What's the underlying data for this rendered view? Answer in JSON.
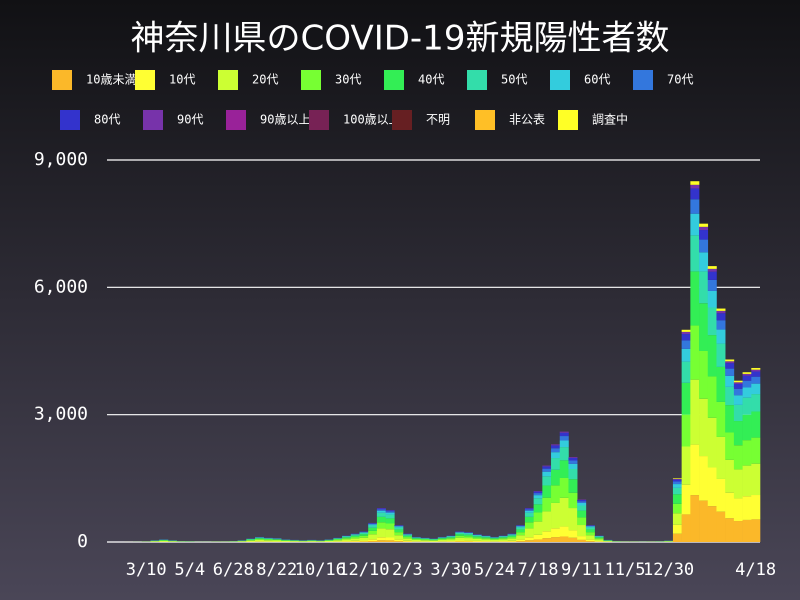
{
  "chart_data": {
    "type": "bar",
    "stacked": true,
    "title": "神奈川県のCOVID-19新規陽性者数",
    "categories": [
      null,
      null,
      null,
      null,
      "3/10",
      null,
      null,
      null,
      null,
      "5/4",
      null,
      null,
      null,
      null,
      "6/28",
      null,
      null,
      null,
      null,
      "8/22",
      null,
      null,
      null,
      null,
      "10/16",
      null,
      null,
      null,
      null,
      "12/10",
      null,
      null,
      null,
      null,
      "2/3",
      null,
      null,
      null,
      null,
      "3/30",
      null,
      null,
      null,
      null,
      "5/24",
      null,
      null,
      null,
      null,
      "7/18",
      null,
      null,
      null,
      null,
      "9/11",
      null,
      null,
      null,
      null,
      "11/5",
      null,
      null,
      null,
      null,
      "12/30",
      null,
      null,
      null,
      null,
      null,
      null,
      null,
      null,
      null,
      "4/18"
    ],
    "ylim": [
      0,
      9000
    ],
    "yticks": [
      0,
      {
        "value": 3000,
        "label": "3,000"
      },
      {
        "value": 6000,
        "label": "6,000"
      },
      {
        "value": 9000,
        "label": "9,000"
      }
    ],
    "grid": true,
    "series": [
      {
        "name": "10歳未満",
        "color": "#fbb829",
        "values": [
          0,
          0,
          0,
          0,
          1,
          2,
          3,
          2,
          1,
          1,
          0,
          0,
          1,
          1,
          1,
          2,
          4,
          6,
          5,
          5,
          3,
          3,
          2,
          3,
          2,
          3,
          5,
          8,
          10,
          13,
          23,
          40,
          38,
          20,
          10,
          6,
          5,
          4,
          6,
          8,
          13,
          12,
          9,
          8,
          6,
          8,
          10,
          20,
          40,
          60,
          90,
          115,
          130,
          100,
          50,
          20,
          8,
          3,
          1,
          1,
          1,
          0,
          1,
          1,
          2,
          195,
          650,
          1105,
          975,
          845,
          715,
          559,
          494,
          520,
          533
        ]
      },
      {
        "name": "10代",
        "color": "#ffff33",
        "values": [
          0,
          0,
          0,
          0,
          1,
          4,
          5,
          4,
          2,
          1,
          0,
          0,
          1,
          1,
          2,
          4,
          7,
          11,
          9,
          8,
          5,
          5,
          4,
          5,
          4,
          5,
          9,
          14,
          18,
          23,
          41,
          72,
          68,
          36,
          18,
          11,
          9,
          7,
          11,
          14,
          23,
          21,
          16,
          14,
          11,
          14,
          18,
          36,
          72,
          108,
          162,
          207,
          234,
          180,
          90,
          36,
          14,
          5,
          2,
          1,
          1,
          1,
          1,
          1,
          3,
          210,
          700,
          1190,
          1050,
          910,
          770,
          602,
          532,
          560,
          574
        ]
      },
      {
        "name": "20代",
        "color": "#ccff33",
        "values": [
          0,
          0,
          1,
          1,
          3,
          10,
          16,
          10,
          5,
          4,
          2,
          2,
          3,
          3,
          5,
          10,
          21,
          31,
          26,
          23,
          16,
          13,
          10,
          13,
          10,
          16,
          26,
          39,
          52,
          65,
          117,
          208,
          195,
          104,
          52,
          31,
          26,
          21,
          31,
          39,
          65,
          60,
          47,
          39,
          31,
          39,
          52,
          104,
          208,
          312,
          468,
          598,
          676,
          520,
          260,
          104,
          39,
          13,
          5,
          3,
          3,
          2,
          3,
          4,
          8,
          270,
          900,
          1530,
          1350,
          1170,
          990,
          774,
          684,
          720,
          738
        ]
      },
      {
        "name": "30代",
        "color": "#77ff33",
        "values": [
          0,
          0,
          0,
          1,
          2,
          7,
          11,
          7,
          4,
          3,
          1,
          1,
          2,
          2,
          4,
          7,
          14,
          22,
          18,
          16,
          11,
          9,
          7,
          9,
          7,
          11,
          18,
          27,
          36,
          45,
          81,
          144,
          135,
          72,
          36,
          22,
          18,
          14,
          22,
          27,
          45,
          41,
          32,
          27,
          22,
          27,
          36,
          72,
          144,
          216,
          324,
          414,
          468,
          360,
          180,
          72,
          27,
          9,
          4,
          2,
          2,
          2,
          2,
          3,
          5,
          225,
          750,
          1275,
          1125,
          975,
          825,
          645,
          570,
          600,
          615
        ]
      },
      {
        "name": "40代",
        "color": "#33ee55",
        "values": [
          0,
          0,
          0,
          1,
          2,
          6,
          10,
          6,
          3,
          2,
          1,
          1,
          2,
          2,
          3,
          6,
          13,
          19,
          16,
          14,
          10,
          8,
          6,
          8,
          6,
          10,
          16,
          24,
          32,
          40,
          72,
          128,
          120,
          64,
          32,
          19,
          16,
          13,
          19,
          24,
          40,
          37,
          29,
          24,
          19,
          24,
          32,
          64,
          128,
          192,
          288,
          368,
          416,
          320,
          160,
          64,
          24,
          8,
          3,
          2,
          2,
          1,
          2,
          2,
          5,
          225,
          750,
          1275,
          1125,
          975,
          825,
          645,
          570,
          600,
          615
        ]
      },
      {
        "name": "50代",
        "color": "#33ddaa",
        "values": [
          0,
          0,
          0,
          0,
          1,
          5,
          7,
          5,
          2,
          2,
          1,
          1,
          1,
          1,
          2,
          5,
          10,
          14,
          12,
          11,
          7,
          6,
          5,
          6,
          5,
          7,
          12,
          18,
          24,
          30,
          54,
          96,
          90,
          48,
          24,
          14,
          12,
          10,
          14,
          18,
          30,
          28,
          22,
          18,
          14,
          18,
          24,
          48,
          96,
          144,
          216,
          276,
          312,
          240,
          120,
          48,
          18,
          6,
          2,
          1,
          1,
          1,
          1,
          2,
          4,
          150,
          500,
          850,
          750,
          650,
          550,
          430,
          380,
          400,
          410
        ]
      },
      {
        "name": "60代",
        "color": "#33ccdd",
        "values": [
          0,
          0,
          0,
          0,
          0,
          2,
          4,
          2,
          1,
          1,
          0,
          0,
          0,
          0,
          1,
          2,
          5,
          7,
          6,
          5,
          4,
          3,
          2,
          3,
          2,
          4,
          6,
          9,
          12,
          15,
          27,
          48,
          45,
          24,
          12,
          7,
          6,
          5,
          7,
          9,
          15,
          14,
          11,
          9,
          7,
          9,
          12,
          24,
          48,
          72,
          108,
          138,
          156,
          120,
          60,
          24,
          9,
          3,
          1,
          0,
          0,
          1,
          0,
          1,
          2,
          90,
          300,
          510,
          450,
          390,
          330,
          258,
          228,
          240,
          246
        ]
      },
      {
        "name": "70代",
        "color": "#3377dd",
        "values": [
          0,
          0,
          0,
          0,
          0,
          2,
          2,
          2,
          1,
          1,
          0,
          0,
          0,
          0,
          1,
          2,
          3,
          5,
          4,
          4,
          2,
          2,
          2,
          2,
          2,
          2,
          4,
          6,
          8,
          10,
          18,
          32,
          30,
          16,
          8,
          5,
          4,
          3,
          5,
          6,
          10,
          9,
          7,
          6,
          5,
          6,
          8,
          16,
          32,
          48,
          72,
          92,
          104,
          80,
          40,
          16,
          6,
          2,
          1,
          0,
          0,
          0,
          0,
          1,
          1,
          60,
          200,
          340,
          300,
          260,
          220,
          172,
          152,
          160,
          164
        ]
      },
      {
        "name": "80代",
        "color": "#3333cc",
        "values": [
          0,
          0,
          0,
          0,
          0,
          1,
          2,
          1,
          1,
          0,
          0,
          0,
          0,
          0,
          1,
          1,
          2,
          4,
          3,
          3,
          2,
          1,
          1,
          1,
          1,
          2,
          3,
          4,
          6,
          7,
          13,
          24,
          22,
          12,
          6,
          4,
          3,
          2,
          4,
          4,
          7,
          7,
          5,
          4,
          4,
          4,
          6,
          12,
          24,
          36,
          54,
          69,
          78,
          60,
          30,
          12,
          4,
          1,
          1,
          0,
          0,
          0,
          0,
          0,
          0,
          45,
          150,
          255,
          225,
          195,
          165,
          129,
          114,
          120,
          123
        ]
      },
      {
        "name": "90代",
        "color": "#7733aa",
        "values": [
          0,
          0,
          0,
          0,
          0,
          1,
          0,
          1,
          0,
          0,
          0,
          0,
          0,
          0,
          0,
          1,
          1,
          1,
          1,
          1,
          0,
          0,
          1,
          0,
          1,
          0,
          1,
          1,
          2,
          2,
          4,
          8,
          7,
          4,
          2,
          1,
          1,
          1,
          1,
          1,
          2,
          2,
          2,
          1,
          1,
          1,
          2,
          4,
          8,
          12,
          18,
          23,
          26,
          20,
          10,
          4,
          1,
          0,
          0,
          0,
          0,
          0,
          0,
          0,
          0,
          15,
          50,
          85,
          75,
          65,
          55,
          43,
          38,
          40,
          41
        ]
      },
      {
        "name": "90歳以上",
        "color": "#992299",
        "values": [
          0,
          0,
          0,
          0,
          0,
          0,
          0,
          0,
          0,
          0,
          0,
          0,
          0,
          0,
          0,
          0,
          0,
          0,
          0,
          0,
          0,
          0,
          0,
          0,
          0,
          0,
          0,
          0,
          0,
          0,
          0,
          0,
          0,
          0,
          0,
          0,
          0,
          0,
          0,
          0,
          0,
          0,
          0,
          0,
          0,
          0,
          0,
          0,
          0,
          0,
          0,
          0,
          0,
          0,
          0,
          0,
          0,
          0,
          0,
          0,
          0,
          0,
          0,
          0,
          0,
          0,
          0,
          0,
          0,
          0,
          0,
          0,
          0,
          0,
          0
        ]
      },
      {
        "name": "100歳以上",
        "color": "#772255",
        "values": [
          0,
          0,
          0,
          0,
          0,
          0,
          0,
          0,
          0,
          0,
          0,
          0,
          0,
          0,
          0,
          0,
          0,
          0,
          0,
          0,
          0,
          0,
          0,
          0,
          0,
          0,
          0,
          0,
          0,
          0,
          0,
          0,
          0,
          0,
          0,
          0,
          0,
          0,
          0,
          0,
          0,
          0,
          0,
          0,
          0,
          0,
          0,
          0,
          0,
          0,
          0,
          0,
          0,
          0,
          0,
          0,
          0,
          0,
          0,
          0,
          0,
          0,
          0,
          0,
          0,
          0,
          0,
          0,
          0,
          0,
          0,
          0,
          0,
          0,
          0
        ]
      },
      {
        "name": "不明",
        "color": "#661f22",
        "values": [
          0,
          0,
          0,
          0,
          0,
          0,
          0,
          0,
          0,
          0,
          0,
          0,
          0,
          0,
          0,
          0,
          0,
          0,
          0,
          0,
          0,
          0,
          0,
          0,
          0,
          0,
          0,
          0,
          0,
          0,
          0,
          0,
          0,
          0,
          0,
          0,
          0,
          0,
          0,
          0,
          0,
          0,
          0,
          0,
          0,
          0,
          0,
          0,
          0,
          0,
          0,
          0,
          0,
          0,
          0,
          0,
          0,
          0,
          0,
          0,
          0,
          0,
          0,
          0,
          0,
          0,
          0,
          0,
          0,
          0,
          0,
          0,
          0,
          0,
          0
        ]
      },
      {
        "name": "非公表",
        "color": "#ffbf26",
        "values": [
          0,
          0,
          0,
          0,
          0,
          0,
          0,
          0,
          0,
          0,
          0,
          0,
          0,
          0,
          0,
          0,
          0,
          0,
          0,
          0,
          0,
          0,
          0,
          0,
          0,
          0,
          0,
          0,
          0,
          0,
          0,
          0,
          0,
          0,
          0,
          0,
          0,
          0,
          0,
          0,
          0,
          0,
          0,
          0,
          0,
          0,
          0,
          0,
          0,
          0,
          0,
          0,
          0,
          0,
          0,
          0,
          0,
          0,
          0,
          0,
          0,
          0,
          0,
          0,
          0,
          0,
          0,
          0,
          0,
          0,
          0,
          0,
          0,
          0,
          0
        ]
      },
      {
        "name": "調査中",
        "color": "#ffff26",
        "values": [
          0,
          0,
          0,
          0,
          0,
          0,
          0,
          0,
          0,
          0,
          0,
          0,
          0,
          0,
          0,
          0,
          0,
          0,
          0,
          0,
          0,
          0,
          0,
          0,
          0,
          0,
          0,
          0,
          0,
          0,
          0,
          0,
          0,
          0,
          0,
          0,
          0,
          0,
          0,
          0,
          0,
          0,
          0,
          0,
          0,
          0,
          0,
          0,
          0,
          0,
          0,
          0,
          0,
          0,
          0,
          0,
          0,
          0,
          0,
          0,
          0,
          0,
          0,
          0,
          0,
          15,
          50,
          85,
          75,
          65,
          55,
          43,
          38,
          40,
          41
        ]
      }
    ]
  }
}
